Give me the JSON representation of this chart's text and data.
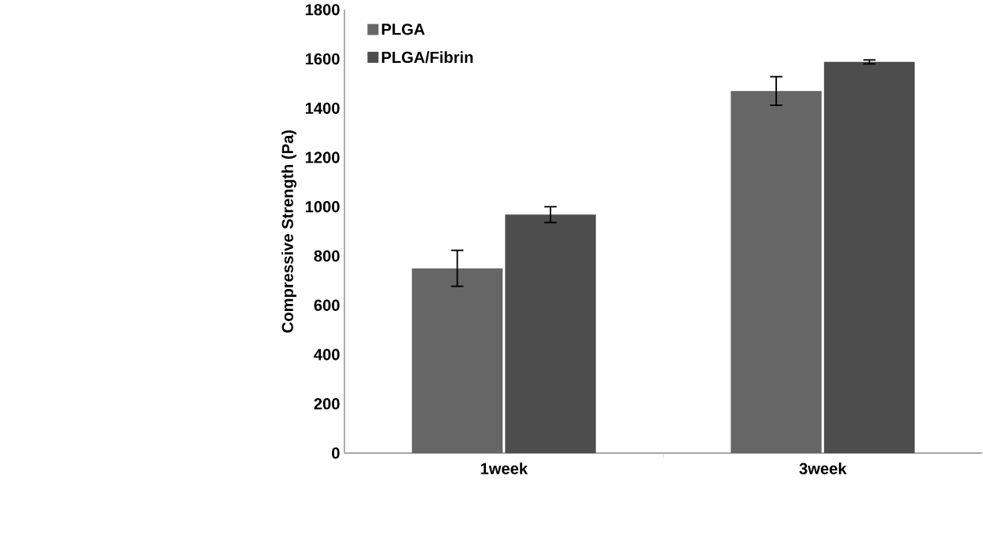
{
  "chart_data": {
    "type": "bar",
    "ylabel": "Compressive Strength (Pa)",
    "categories": [
      "1week",
      "3week"
    ],
    "series": [
      {
        "name": "PLGA",
        "color": "#666666",
        "values": [
          750,
          1470
        ],
        "errors": [
          73,
          58
        ]
      },
      {
        "name": "PLGA/Fibrin",
        "color": "#4d4d4d",
        "values": [
          968,
          1588
        ],
        "errors": [
          32,
          8
        ]
      }
    ],
    "ylim": [
      0,
      1800
    ],
    "yticks": [
      0,
      200,
      400,
      600,
      800,
      1000,
      1200,
      1400,
      1600,
      1800
    ],
    "grid": false,
    "legend": "top left"
  }
}
